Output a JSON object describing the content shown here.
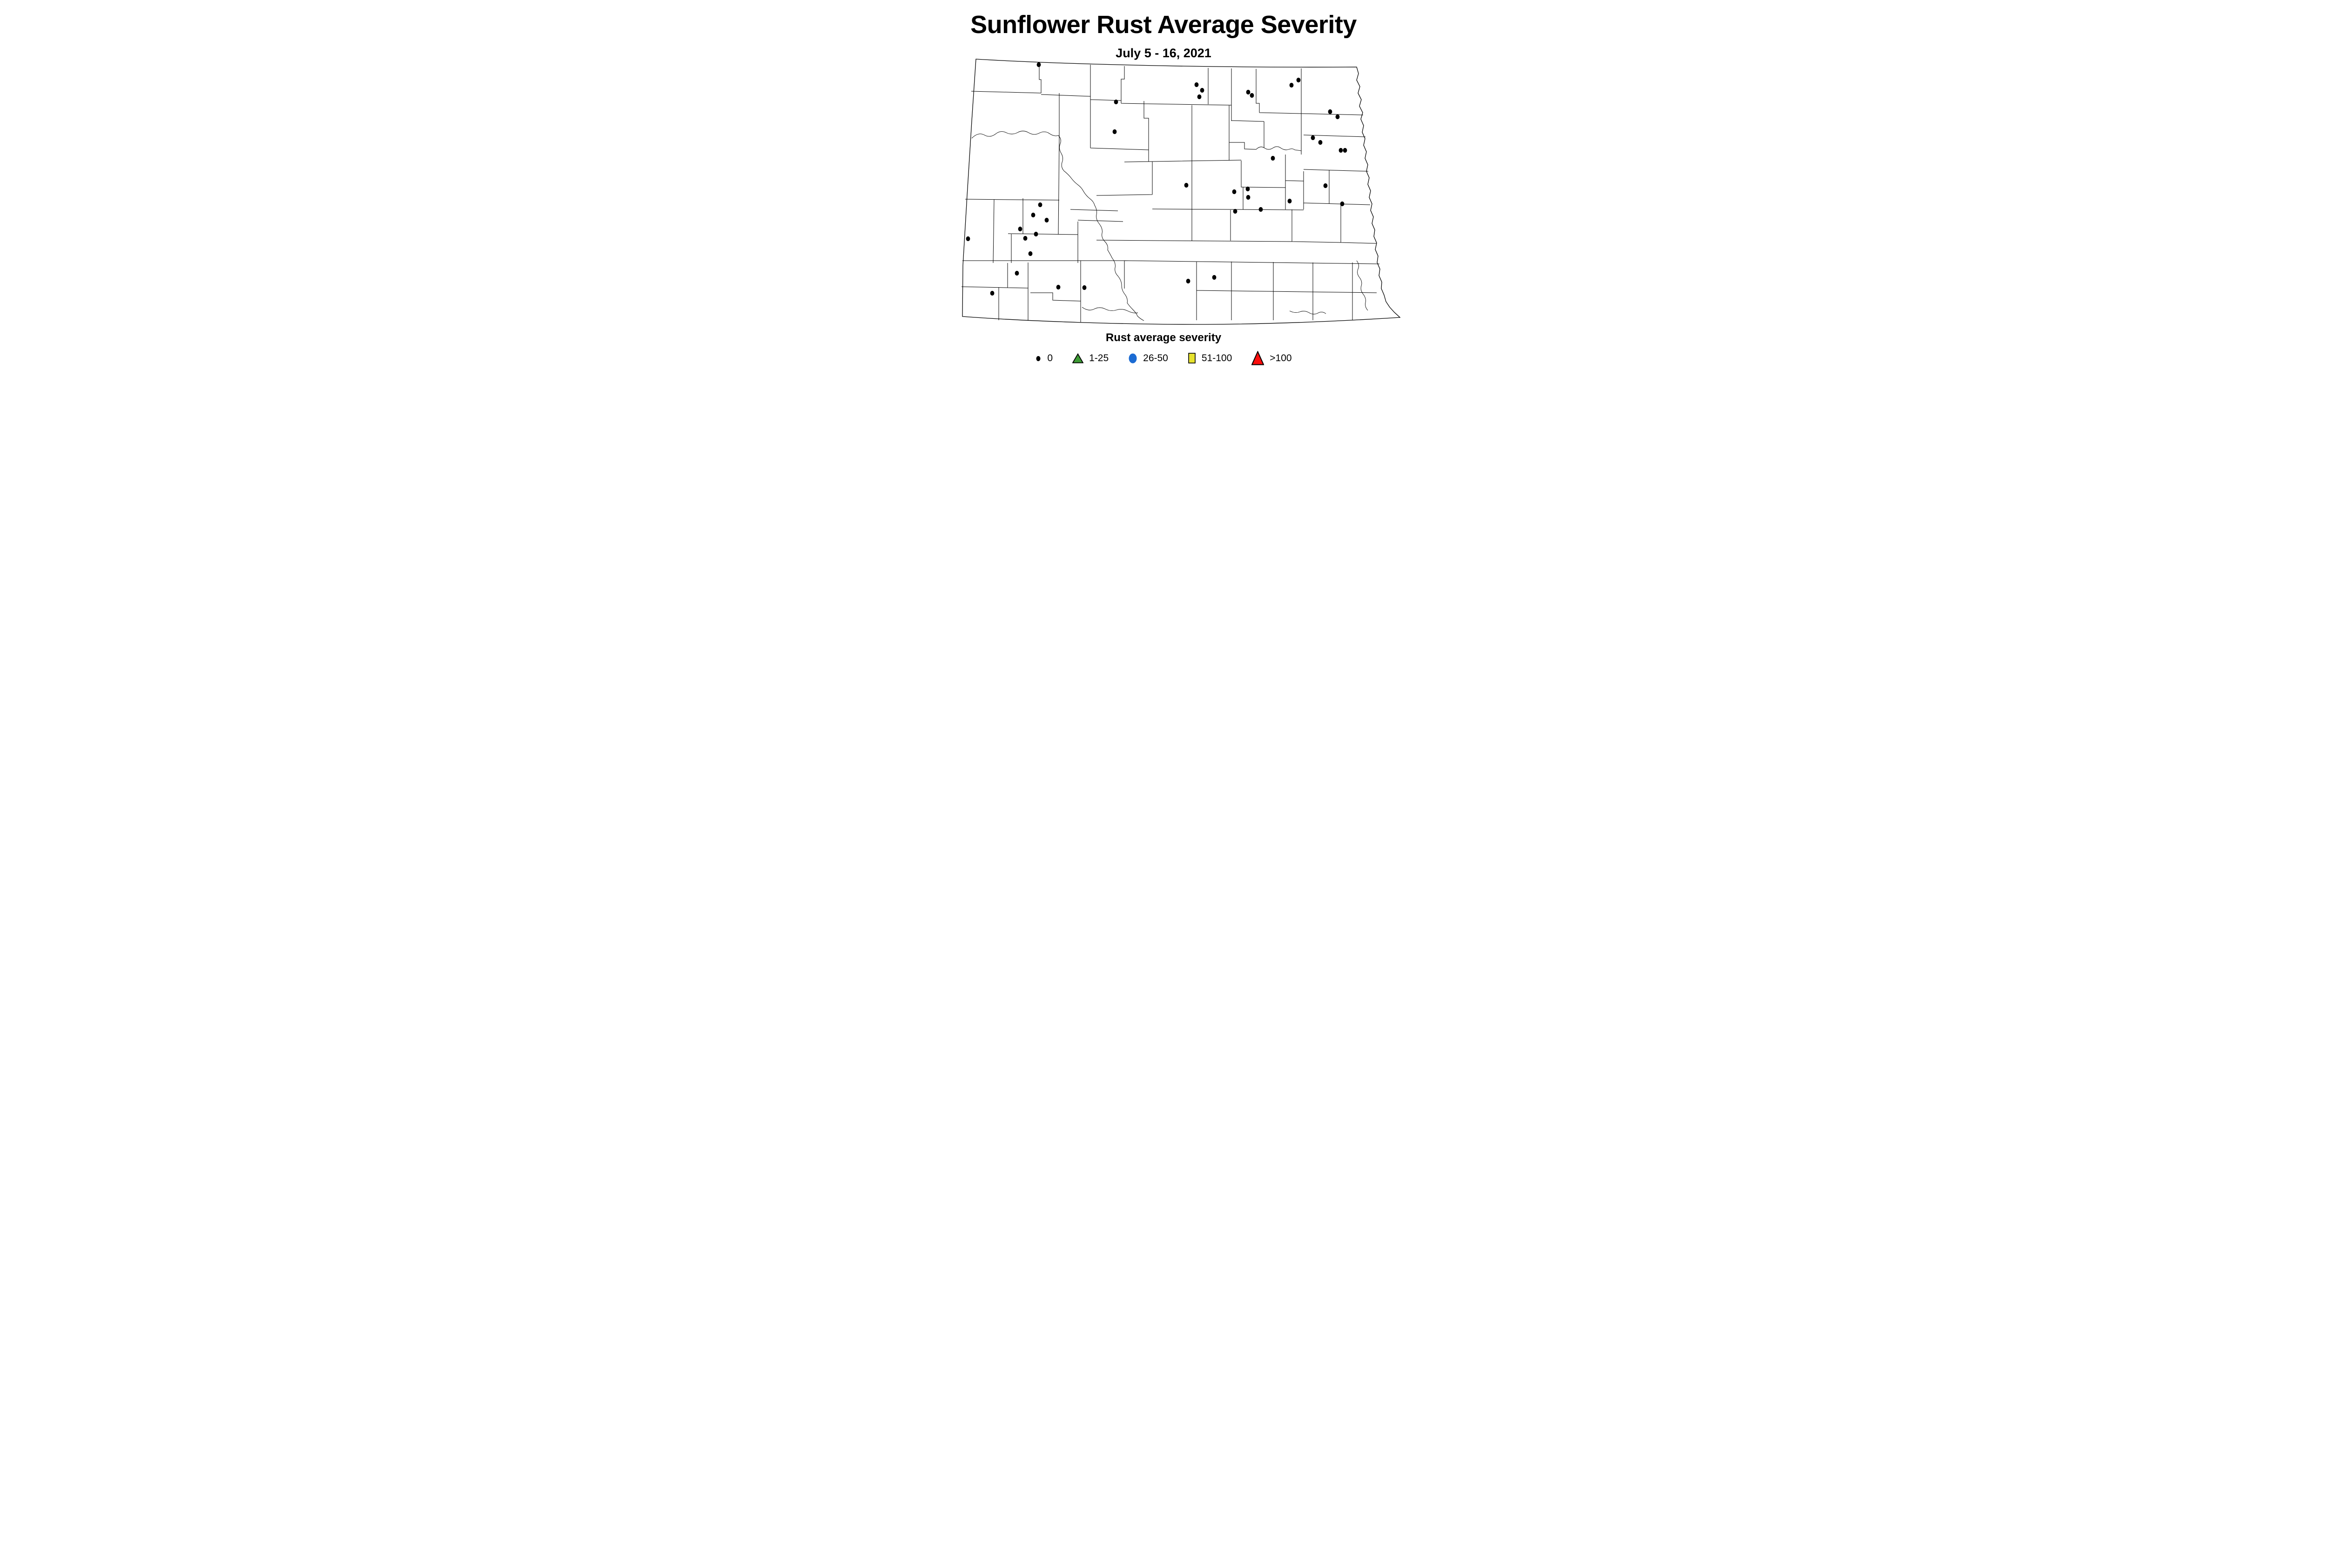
{
  "title": "Sunflower Rust Average Severity",
  "subtitle": "July 5 - 16, 2021",
  "legend": {
    "title": "Rust average severity",
    "items": [
      {
        "label": "0",
        "shape": "dot",
        "color": "#000000"
      },
      {
        "label": "1-25",
        "shape": "triangle",
        "color": "#3D9B35"
      },
      {
        "label": "26-50",
        "shape": "circle",
        "color": "#1B6BD3"
      },
      {
        "label": "51-100",
        "shape": "square",
        "color": "#E6E22E"
      },
      {
        "label": ">100",
        "shape": "triangle",
        "color": "#FB0D0C"
      }
    ]
  },
  "map": {
    "region_shown": "county map",
    "dot_color": "#000000",
    "dot_severity_label": "0",
    "dot_rx": 4.4,
    "dot_ry": 5.1,
    "dots": [
      [
        516,
        139
      ],
      [
        855,
        182
      ],
      [
        867,
        194
      ],
      [
        861,
        208
      ],
      [
        966,
        198
      ],
      [
        974,
        205
      ],
      [
        1059,
        183
      ],
      [
        1074,
        172
      ],
      [
        682,
        219
      ],
      [
        1142,
        240
      ],
      [
        1158,
        251
      ],
      [
        679,
        283
      ],
      [
        1105,
        296
      ],
      [
        1121,
        306
      ],
      [
        1019,
        340
      ],
      [
        1165,
        323
      ],
      [
        1174,
        323
      ],
      [
        833,
        398
      ],
      [
        936,
        412
      ],
      [
        965,
        406
      ],
      [
        966,
        424
      ],
      [
        1055,
        432
      ],
      [
        1132,
        399
      ],
      [
        938,
        454
      ],
      [
        993,
        450
      ],
      [
        1168,
        438
      ],
      [
        519,
        440
      ],
      [
        504,
        462
      ],
      [
        533,
        473
      ],
      [
        476,
        492
      ],
      [
        364,
        513
      ],
      [
        510,
        503
      ],
      [
        487,
        512
      ],
      [
        498,
        545
      ],
      [
        469,
        587
      ],
      [
        416,
        630
      ],
      [
        558,
        617
      ],
      [
        614,
        618
      ],
      [
        837,
        604
      ],
      [
        893,
        596
      ]
    ]
  }
}
